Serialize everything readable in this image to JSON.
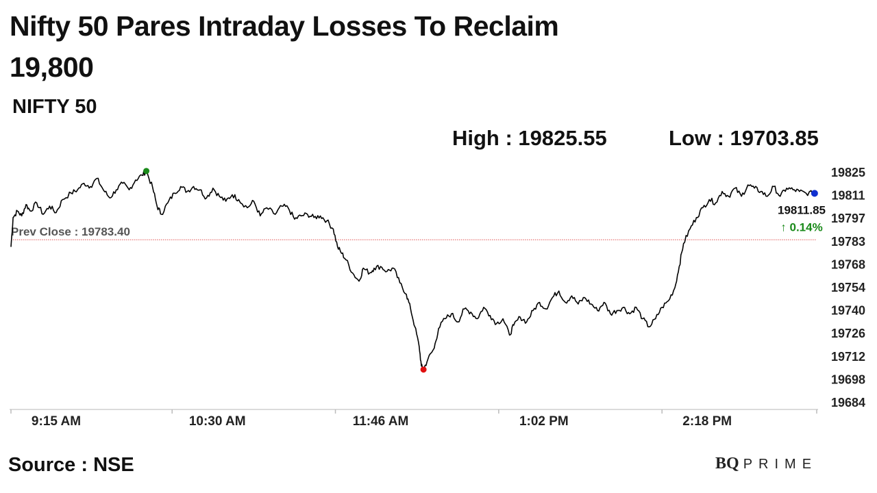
{
  "headline": {
    "line1": "Nifty 50 Pares Intraday Losses To Reclaim",
    "line2": "19,800"
  },
  "subtitle": "NIFTY 50",
  "stats": {
    "high": "High : 19825.55",
    "low": "Low : 19703.85"
  },
  "footer": {
    "source": "Source : NSE",
    "brand_bq": "BQ",
    "brand_prime": "PRIME"
  },
  "colors": {
    "line": "#000000",
    "prev_close_line": "#e05050",
    "high_marker": "#1a8a1a",
    "low_marker": "#e01010",
    "last_marker": "#1030d0",
    "change_up": "#1a8a1a"
  },
  "chart_data": {
    "type": "line",
    "y_ticks": [
      "19825",
      "19811",
      "19797",
      "19783",
      "19768",
      "19754",
      "19740",
      "19726",
      "19712",
      "19698",
      "19684"
    ],
    "ylim": [
      19684,
      19825
    ],
    "x_ticks": [
      "9:15 AM",
      "10:30 AM",
      "11:46 AM",
      "1:02 PM",
      "2:18 PM"
    ],
    "x_tick_minutes": [
      0,
      75,
      151,
      227,
      303
    ],
    "session_minutes": 375,
    "prev_close": 19783.4,
    "prev_close_label": "Prev Close : 19783.40",
    "last_value_label": "19811.85",
    "change_label": "↑ 0.14%",
    "high": 19825.55,
    "low": 19703.85,
    "last": 19811.85,
    "series": [
      {
        "points": [
          [
            0,
            19779
          ],
          [
            1,
            19797
          ],
          [
            3,
            19801
          ],
          [
            5,
            19798
          ],
          [
            7,
            19805
          ],
          [
            9,
            19801
          ],
          [
            12,
            19806
          ],
          [
            15,
            19799
          ],
          [
            18,
            19804
          ],
          [
            21,
            19800
          ],
          [
            24,
            19808
          ],
          [
            28,
            19812
          ],
          [
            31,
            19814
          ],
          [
            34,
            19818
          ],
          [
            37,
            19816
          ],
          [
            40,
            19821
          ],
          [
            43,
            19814
          ],
          [
            46,
            19809
          ],
          [
            49,
            19814
          ],
          [
            52,
            19818
          ],
          [
            55,
            19814
          ],
          [
            58,
            19820
          ],
          [
            61,
            19823
          ],
          [
            63,
            19825.55
          ],
          [
            66,
            19815
          ],
          [
            68,
            19804
          ],
          [
            70,
            19799
          ],
          [
            73,
            19806
          ],
          [
            76,
            19812
          ],
          [
            79,
            19816
          ],
          [
            82,
            19813
          ],
          [
            85,
            19816
          ],
          [
            88,
            19814
          ],
          [
            91,
            19809
          ],
          [
            94,
            19815
          ],
          [
            97,
            19810
          ],
          [
            100,
            19807
          ],
          [
            103,
            19811
          ],
          [
            106,
            19808
          ],
          [
            110,
            19803
          ],
          [
            113,
            19807
          ],
          [
            116,
            19798
          ],
          [
            119,
            19803
          ],
          [
            123,
            19799
          ],
          [
            126,
            19804
          ],
          [
            129,
            19803
          ],
          [
            132,
            19796
          ],
          [
            135,
            19798
          ],
          [
            138,
            19799
          ],
          [
            141,
            19797
          ],
          [
            144,
            19798
          ],
          [
            147,
            19795
          ],
          [
            150,
            19790
          ],
          [
            152,
            19779
          ],
          [
            154,
            19775
          ],
          [
            156,
            19771
          ],
          [
            159,
            19763
          ],
          [
            162,
            19758
          ],
          [
            164,
            19766
          ],
          [
            167,
            19763
          ],
          [
            169,
            19766
          ],
          [
            172,
            19767
          ],
          [
            175,
            19764
          ],
          [
            178,
            19766
          ],
          [
            181,
            19757
          ],
          [
            184,
            19750
          ],
          [
            186,
            19741
          ],
          [
            188,
            19730
          ],
          [
            190,
            19718
          ],
          [
            191,
            19706
          ],
          [
            192,
            19703.85
          ],
          [
            194,
            19710
          ],
          [
            197,
            19717
          ],
          [
            199,
            19729
          ],
          [
            202,
            19735
          ],
          [
            205,
            19738
          ],
          [
            208,
            19733
          ],
          [
            211,
            19741
          ],
          [
            214,
            19739
          ],
          [
            217,
            19735
          ],
          [
            220,
            19742
          ],
          [
            223,
            19737
          ],
          [
            226,
            19732
          ],
          [
            229,
            19735
          ],
          [
            232,
            19725
          ],
          [
            234,
            19731
          ],
          [
            237,
            19736
          ],
          [
            240,
            19733
          ],
          [
            243,
            19740
          ],
          [
            246,
            19745
          ],
          [
            249,
            19741
          ],
          [
            252,
            19748
          ],
          [
            255,
            19752
          ],
          [
            258,
            19745
          ],
          [
            261,
            19749
          ],
          [
            264,
            19744
          ],
          [
            267,
            19748
          ],
          [
            270,
            19744
          ],
          [
            273,
            19740
          ],
          [
            276,
            19745
          ],
          [
            279,
            19738
          ],
          [
            282,
            19740
          ],
          [
            285,
            19742
          ],
          [
            288,
            19738
          ],
          [
            291,
            19742
          ],
          [
            294,
            19735
          ],
          [
            297,
            19730
          ],
          [
            300,
            19735
          ],
          [
            303,
            19742
          ],
          [
            306,
            19746
          ],
          [
            309,
            19754
          ],
          [
            311,
            19767
          ],
          [
            313,
            19781
          ],
          [
            316,
            19790
          ],
          [
            319,
            19797
          ],
          [
            322,
            19803
          ],
          [
            325,
            19808
          ],
          [
            328,
            19806
          ],
          [
            331,
            19813
          ],
          [
            334,
            19810
          ],
          [
            337,
            19815
          ],
          [
            340,
            19810
          ],
          [
            343,
            19817
          ],
          [
            346,
            19815
          ],
          [
            349,
            19813
          ],
          [
            352,
            19810
          ],
          [
            355,
            19816
          ],
          [
            358,
            19810
          ],
          [
            361,
            19815
          ],
          [
            364,
            19814
          ],
          [
            367,
            19813
          ],
          [
            370,
            19812
          ],
          [
            374,
            19811.85
          ]
        ]
      }
    ]
  }
}
